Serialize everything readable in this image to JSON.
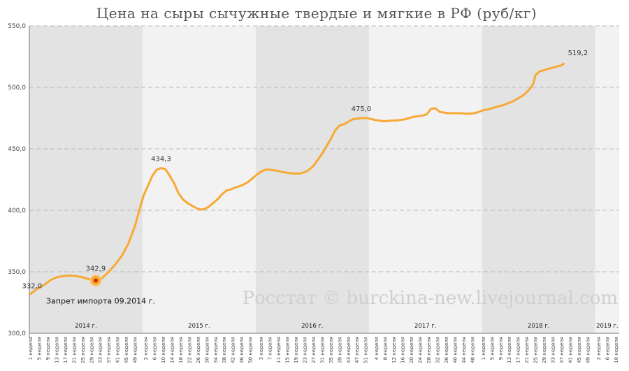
{
  "chart_data": {
    "type": "line",
    "title": "Цена на сыры сычужные твердые и мягкие в РФ (руб/кг)",
    "ylim": [
      300,
      550
    ],
    "yticks": [
      "300,0",
      "350,0",
      "400,0",
      "450,0",
      "500,0",
      "550,0"
    ],
    "ytick_values": [
      300,
      350,
      400,
      450,
      500,
      550
    ],
    "grid": true,
    "years": [
      {
        "label": "2014 г.",
        "start": 0,
        "end": 52
      },
      {
        "label": "2015 г.",
        "start": 52,
        "end": 104
      },
      {
        "label": "2016 г.",
        "start": 104,
        "end": 156
      },
      {
        "label": "2017 г.",
        "start": 156,
        "end": 208
      },
      {
        "label": "2018 г.",
        "start": 208,
        "end": 260
      },
      {
        "label": "2019 г.",
        "start": 260,
        "end": 271
      }
    ],
    "xticks": [
      {
        "i": 0,
        "label": "1 неделя"
      },
      {
        "i": 4,
        "label": "5 неделя"
      },
      {
        "i": 8,
        "label": "9 неделя"
      },
      {
        "i": 12,
        "label": "13 неделя"
      },
      {
        "i": 16,
        "label": "17 неделя"
      },
      {
        "i": 20,
        "label": "21 неделя"
      },
      {
        "i": 24,
        "label": "25 неделя"
      },
      {
        "i": 28,
        "label": "29 неделя"
      },
      {
        "i": 32,
        "label": "33 неделя"
      },
      {
        "i": 36,
        "label": "37 неделя"
      },
      {
        "i": 40,
        "label": "41 неделя"
      },
      {
        "i": 44,
        "label": "45 неделя"
      },
      {
        "i": 48,
        "label": "49 неделя"
      },
      {
        "i": 53,
        "label": "2 неделя"
      },
      {
        "i": 57,
        "label": "6 неделя"
      },
      {
        "i": 61,
        "label": "10 неделя"
      },
      {
        "i": 65,
        "label": "14 неделя"
      },
      {
        "i": 69,
        "label": "18 неделя"
      },
      {
        "i": 73,
        "label": "22 неделя"
      },
      {
        "i": 77,
        "label": "26 неделя"
      },
      {
        "i": 81,
        "label": "30 неделя"
      },
      {
        "i": 85,
        "label": "34 неделя"
      },
      {
        "i": 89,
        "label": "38 неделя"
      },
      {
        "i": 93,
        "label": "42 неделя"
      },
      {
        "i": 97,
        "label": "46 неделя"
      },
      {
        "i": 101,
        "label": "50 неделя"
      },
      {
        "i": 106,
        "label": "3 неделя"
      },
      {
        "i": 110,
        "label": "7 неделя"
      },
      {
        "i": 114,
        "label": "11 неделя"
      },
      {
        "i": 118,
        "label": "15 неделя"
      },
      {
        "i": 122,
        "label": "19 неделя"
      },
      {
        "i": 126,
        "label": "23 неделя"
      },
      {
        "i": 130,
        "label": "27 неделя"
      },
      {
        "i": 134,
        "label": "31 неделя"
      },
      {
        "i": 138,
        "label": "35 неделя"
      },
      {
        "i": 142,
        "label": "39 неделя"
      },
      {
        "i": 146,
        "label": "43 неделя"
      },
      {
        "i": 150,
        "label": "47 неделя"
      },
      {
        "i": 154,
        "label": "51 неделя"
      },
      {
        "i": 159,
        "label": "4 неделя"
      },
      {
        "i": 163,
        "label": "8 неделя"
      },
      {
        "i": 167,
        "label": "12 неделя"
      },
      {
        "i": 171,
        "label": "16 неделя"
      },
      {
        "i": 175,
        "label": "20 неделя"
      },
      {
        "i": 179,
        "label": "24 неделя"
      },
      {
        "i": 183,
        "label": "28 неделя"
      },
      {
        "i": 187,
        "label": "32 неделя"
      },
      {
        "i": 191,
        "label": "36 неделя"
      },
      {
        "i": 195,
        "label": "40 неделя"
      },
      {
        "i": 199,
        "label": "44 неделя"
      },
      {
        "i": 203,
        "label": "48 неделя"
      },
      {
        "i": 208,
        "label": "1 неделя"
      },
      {
        "i": 212,
        "label": "5 неделя"
      },
      {
        "i": 216,
        "label": "9 неделя"
      },
      {
        "i": 220,
        "label": "13 неделя"
      },
      {
        "i": 224,
        "label": "17 неделя"
      },
      {
        "i": 228,
        "label": "21 неделя"
      },
      {
        "i": 232,
        "label": "25 неделя"
      },
      {
        "i": 236,
        "label": "29 неделя"
      },
      {
        "i": 240,
        "label": "33 неделя"
      },
      {
        "i": 244,
        "label": "37 неделя"
      },
      {
        "i": 248,
        "label": "41 неделя"
      },
      {
        "i": 252,
        "label": "45 неделя"
      },
      {
        "i": 256,
        "label": "49 неделя"
      },
      {
        "i": 261,
        "label": "2 неделя"
      },
      {
        "i": 265,
        "label": "6 неделя"
      },
      {
        "i": 269,
        "label": "10 неделя"
      }
    ],
    "series": [
      {
        "color": "#F7A935",
        "points": [
          [
            0,
            332.0
          ],
          [
            3,
            336
          ],
          [
            6,
            339
          ],
          [
            9,
            343
          ],
          [
            12,
            345.5
          ],
          [
            15,
            346.5
          ],
          [
            18,
            347
          ],
          [
            21,
            346.5
          ],
          [
            24,
            345.5
          ],
          [
            27,
            344
          ],
          [
            30,
            342.9
          ],
          [
            33,
            345
          ],
          [
            36,
            350
          ],
          [
            39,
            356
          ],
          [
            42,
            363
          ],
          [
            45,
            373
          ],
          [
            48,
            387
          ],
          [
            50,
            400
          ],
          [
            52,
            412
          ],
          [
            54,
            420
          ],
          [
            56,
            428
          ],
          [
            58,
            433
          ],
          [
            60,
            434.3
          ],
          [
            62,
            433.5
          ],
          [
            64,
            428
          ],
          [
            66,
            422
          ],
          [
            68,
            414
          ],
          [
            70,
            409
          ],
          [
            72,
            406
          ],
          [
            74,
            404
          ],
          [
            76,
            402
          ],
          [
            78,
            400.5
          ],
          [
            80,
            401
          ],
          [
            82,
            403
          ],
          [
            84,
            406
          ],
          [
            86,
            409
          ],
          [
            88,
            413
          ],
          [
            90,
            416
          ],
          [
            92,
            417
          ],
          [
            94,
            418.5
          ],
          [
            96,
            419.5
          ],
          [
            98,
            421
          ],
          [
            100,
            423
          ],
          [
            102,
            426
          ],
          [
            104,
            429
          ],
          [
            106,
            431.5
          ],
          [
            108,
            433
          ],
          [
            110,
            433
          ],
          [
            112,
            432.5
          ],
          [
            114,
            432
          ],
          [
            116,
            431
          ],
          [
            118,
            430.5
          ],
          [
            120,
            430
          ],
          [
            122,
            430
          ],
          [
            124,
            430
          ],
          [
            126,
            431
          ],
          [
            128,
            433
          ],
          [
            130,
            436
          ],
          [
            132,
            441
          ],
          [
            134,
            446
          ],
          [
            136,
            452
          ],
          [
            138,
            458
          ],
          [
            140,
            465
          ],
          [
            142,
            469
          ],
          [
            144,
            470
          ],
          [
            146,
            472
          ],
          [
            148,
            474
          ],
          [
            150,
            474.5
          ],
          [
            152,
            475
          ],
          [
            154,
            475
          ],
          [
            156,
            474.5
          ],
          [
            158,
            473.5
          ],
          [
            160,
            473
          ],
          [
            162,
            472.5
          ],
          [
            164,
            472.5
          ],
          [
            166,
            473
          ],
          [
            168,
            473
          ],
          [
            170,
            473.5
          ],
          [
            172,
            474
          ],
          [
            174,
            475
          ],
          [
            176,
            476
          ],
          [
            178,
            476.5
          ],
          [
            180,
            477
          ],
          [
            182,
            478
          ],
          [
            184,
            482.5
          ],
          [
            186,
            483
          ],
          [
            188,
            480
          ],
          [
            190,
            479.5
          ],
          [
            192,
            479
          ],
          [
            194,
            479
          ],
          [
            196,
            479
          ],
          [
            198,
            479
          ],
          [
            200,
            478.5
          ],
          [
            202,
            478.5
          ],
          [
            204,
            479
          ],
          [
            206,
            480
          ],
          [
            208,
            481.5
          ],
          [
            210,
            482
          ],
          [
            212,
            483
          ],
          [
            214,
            484
          ],
          [
            216,
            485
          ],
          [
            218,
            486
          ],
          [
            220,
            487.5
          ],
          [
            222,
            489
          ],
          [
            224,
            491
          ],
          [
            226,
            493
          ],
          [
            228,
            496
          ],
          [
            230,
            500
          ],
          [
            231,
            503
          ],
          [
            232,
            510
          ],
          [
            234,
            513
          ],
          [
            236,
            514
          ],
          [
            238,
            515
          ],
          [
            240,
            516
          ],
          [
            242,
            517
          ],
          [
            244,
            518
          ],
          [
            245,
            519.2
          ]
        ]
      }
    ],
    "data_labels": [
      {
        "i": 0,
        "v": 332.0,
        "text": "332,0"
      },
      {
        "i": 30,
        "v": 342.9,
        "text": "342,9"
      },
      {
        "i": 60,
        "v": 434.3,
        "text": "434,3"
      },
      {
        "i": 152,
        "v": 475.0,
        "text": "475,0"
      },
      {
        "i": 245,
        "v": 519.2,
        "text": "519,2"
      }
    ],
    "annotation": {
      "i": 30,
      "v": 342.9,
      "text": "Запрет импорта 09.2014 г."
    },
    "watermark": "Росстат © burckina-new.livejournal.com"
  }
}
